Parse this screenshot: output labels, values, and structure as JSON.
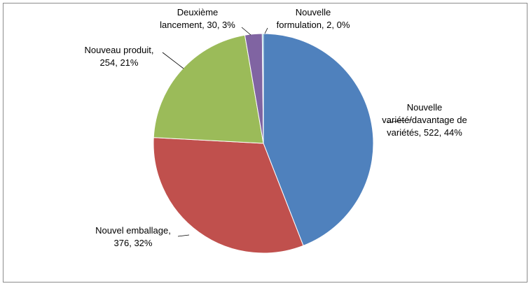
{
  "chart_data": {
    "type": "pie",
    "title": "",
    "legend": "none",
    "slices": [
      {
        "label_lines": [
          "Nouvelle",
          "variété/davantage de",
          "variétés, 522, 44%"
        ],
        "value": 522,
        "percent": 44,
        "color": "#4f81bd"
      },
      {
        "label_lines": [
          "Nouvel emballage,",
          "376, 32%"
        ],
        "value": 376,
        "percent": 32,
        "color": "#c0504d"
      },
      {
        "label_lines": [
          "Nouveau produit,",
          "254, 21%"
        ],
        "value": 254,
        "percent": 21,
        "color": "#9bbb59"
      },
      {
        "label_lines": [
          "Deuxième",
          "lancement, 30, 3%"
        ],
        "value": 30,
        "percent": 3,
        "color": "#8064a2"
      },
      {
        "label_lines": [
          "Nouvelle",
          "formulation, 2, 0%"
        ],
        "value": 2,
        "percent": 0,
        "color": "#4bacc6"
      }
    ]
  }
}
